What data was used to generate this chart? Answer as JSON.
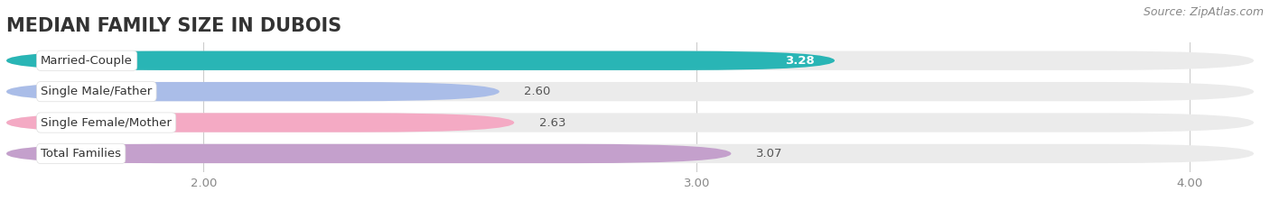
{
  "title": "MEDIAN FAMILY SIZE IN DUBOIS",
  "source": "Source: ZipAtlas.com",
  "categories": [
    "Married-Couple",
    "Single Male/Father",
    "Single Female/Mother",
    "Total Families"
  ],
  "values": [
    3.28,
    2.6,
    2.63,
    3.07
  ],
  "bar_colors": [
    "#29b5b5",
    "#aabde8",
    "#f4aac4",
    "#c4a0cc"
  ],
  "bar_bg_color": "#ebebeb",
  "xlim": [
    1.6,
    4.15
  ],
  "xstart": 1.6,
  "xticks": [
    2.0,
    3.0,
    4.0
  ],
  "xtick_labels": [
    "2.00",
    "3.00",
    "4.00"
  ],
  "background_color": "#ffffff",
  "title_fontsize": 15,
  "label_fontsize": 9.5,
  "value_fontsize": 9.5,
  "source_fontsize": 9,
  "bar_height": 0.62,
  "figsize": [
    14.06,
    2.33
  ],
  "dpi": 100
}
